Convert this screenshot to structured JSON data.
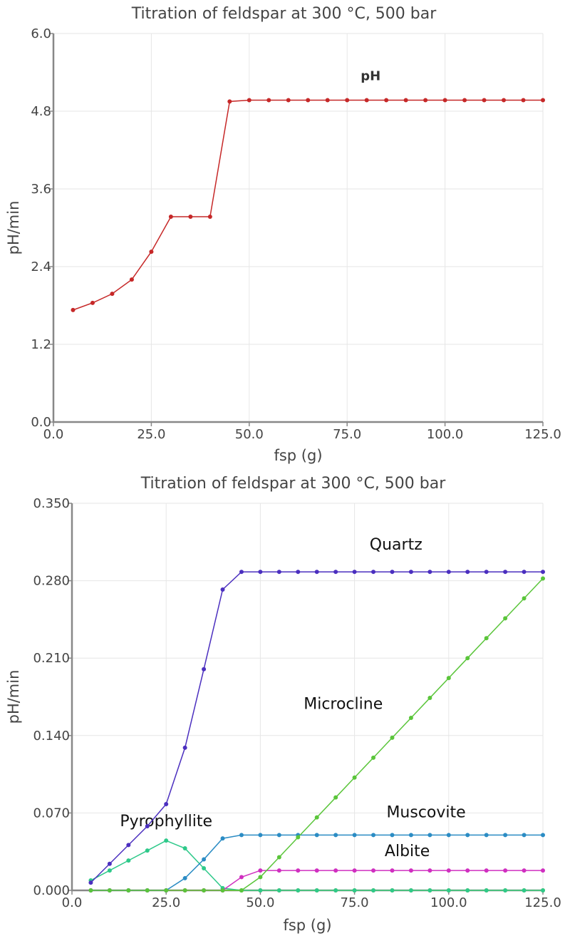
{
  "chart_data": [
    {
      "type": "line",
      "title": "Titration of feldspar at 300 °C, 500 bar",
      "xlabel": "fsp (g)",
      "ylabel": "pH/min",
      "xlim": [
        0,
        125
      ],
      "ylim": [
        0,
        6
      ],
      "x_ticks": [
        "0.0",
        "25.0",
        "50.0",
        "75.0",
        "100.0",
        "125.0"
      ],
      "y_ticks": [
        "0.0",
        "1.2",
        "2.4",
        "3.6",
        "4.8",
        "6.0"
      ],
      "grid": true,
      "x": [
        5,
        10,
        15,
        20,
        25,
        30,
        35,
        40,
        45,
        50,
        55,
        60,
        65,
        70,
        75,
        80,
        85,
        90,
        95,
        100,
        105,
        110,
        115,
        120,
        125
      ],
      "series": [
        {
          "name": "pH",
          "color": "#c62828",
          "label_at": [
            81,
            5.28
          ],
          "values": [
            1.73,
            1.84,
            1.98,
            2.2,
            2.63,
            3.17,
            3.17,
            3.17,
            4.95,
            4.97,
            4.97,
            4.97,
            4.97,
            4.97,
            4.97,
            4.97,
            4.97,
            4.97,
            4.97,
            4.97,
            4.97,
            4.97,
            4.97,
            4.97,
            4.97
          ]
        }
      ]
    },
    {
      "type": "line",
      "title": "Titration of feldspar at 300 °C, 500 bar",
      "xlabel": "fsp (g)",
      "ylabel": "pH/min",
      "xlim": [
        0,
        125
      ],
      "ylim": [
        0,
        0.35
      ],
      "x_ticks": [
        "0.0",
        "25.0",
        "50.0",
        "75.0",
        "100.0",
        "125.0"
      ],
      "y_ticks": [
        "0.000",
        "0.070",
        "0.140",
        "0.210",
        "0.280",
        "0.350"
      ],
      "grid": true,
      "x": [
        5,
        10,
        15,
        20,
        25,
        30,
        35,
        40,
        45,
        50,
        55,
        60,
        65,
        70,
        75,
        80,
        85,
        90,
        95,
        100,
        105,
        110,
        115,
        120,
        125
      ],
      "series": [
        {
          "name": "Quartz",
          "color": "#4b2fbf",
          "label_at": [
            86,
            0.308
          ],
          "values": [
            0.007,
            0.024,
            0.041,
            0.058,
            0.078,
            0.129,
            0.2,
            0.272,
            0.288,
            0.288,
            0.288,
            0.288,
            0.288,
            0.288,
            0.288,
            0.288,
            0.288,
            0.288,
            0.288,
            0.288,
            0.288,
            0.288,
            0.288,
            0.288,
            0.288
          ]
        },
        {
          "name": "Microcline",
          "color": "#5ac53a",
          "label_at": [
            72,
            0.164
          ],
          "values": [
            0,
            0,
            0,
            0,
            0,
            0,
            0,
            0,
            0,
            0.012,
            0.03,
            0.048,
            0.066,
            0.084,
            0.102,
            0.12,
            0.138,
            0.156,
            0.174,
            0.192,
            0.21,
            0.228,
            0.246,
            0.264,
            0.282
          ]
        },
        {
          "name": "Muscovite",
          "color": "#2b8cc4",
          "label_at": [
            94,
            0.066
          ],
          "values": [
            0,
            0,
            0,
            0,
            0,
            0.011,
            0.028,
            0.047,
            0.05,
            0.05,
            0.05,
            0.05,
            0.05,
            0.05,
            0.05,
            0.05,
            0.05,
            0.05,
            0.05,
            0.05,
            0.05,
            0.05,
            0.05,
            0.05,
            0.05
          ]
        },
        {
          "name": "Albite",
          "color": "#d02fc0",
          "label_at": [
            89,
            0.031
          ],
          "values": [
            0,
            0,
            0,
            0,
            0,
            0,
            0,
            0,
            0.012,
            0.018,
            0.018,
            0.018,
            0.018,
            0.018,
            0.018,
            0.018,
            0.018,
            0.018,
            0.018,
            0.018,
            0.018,
            0.018,
            0.018,
            0.018,
            0.018
          ]
        },
        {
          "name": "Pyrophyllite",
          "color": "#2ec98a",
          "label_at": [
            25,
            0.058
          ],
          "values": [
            0.009,
            0.018,
            0.027,
            0.036,
            0.045,
            0.038,
            0.02,
            0.002,
            0,
            0,
            0,
            0,
            0,
            0,
            0,
            0,
            0,
            0,
            0,
            0,
            0,
            0,
            0,
            0,
            0
          ]
        },
        {
          "name": "",
          "color": "#c9b82a",
          "values": [
            0,
            0,
            0,
            0,
            0,
            0,
            0,
            0,
            0,
            0,
            0,
            0,
            0,
            0,
            0,
            0,
            0,
            0,
            0,
            0,
            0,
            0,
            0,
            0,
            0
          ]
        }
      ]
    }
  ]
}
